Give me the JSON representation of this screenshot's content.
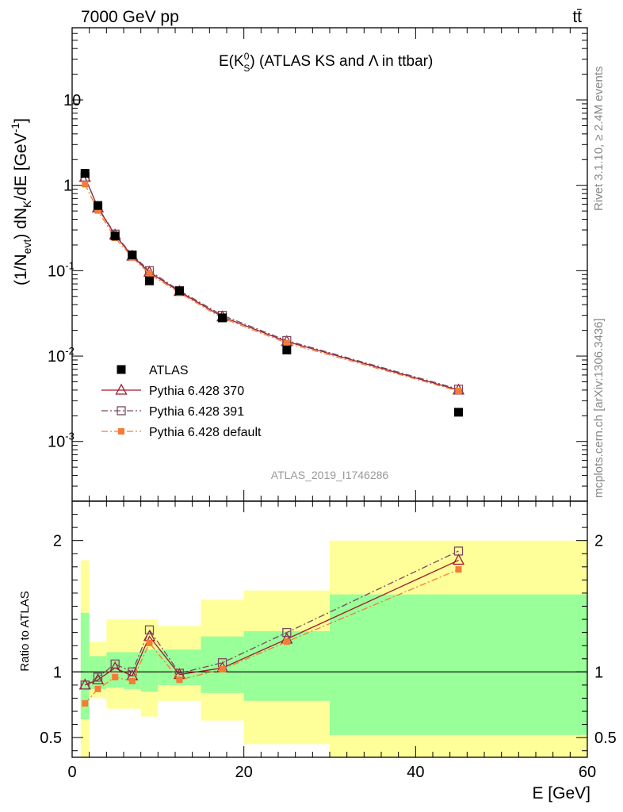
{
  "header": {
    "left": "7000 GeV pp",
    "right": "tt̄"
  },
  "side_text": {
    "rivet": "Rivet 3.1.10, ≥ 2.4M events",
    "mcplots": "mcplots.cern.ch [arXiv:1306.3436]"
  },
  "chart_data": [
    {
      "type": "scatter",
      "panel": "main",
      "title_main": "E(K",
      "title_sup": "0",
      "title_sub": "S",
      "title_rest": ") (ATLAS KS and Λ in ttbar)",
      "ylabel_main": "(1/N",
      "ylabel_sub1": "evt",
      "ylabel_mid": ") dN",
      "ylabel_sub2": "K",
      "ylabel_rest": "/dE [GeV",
      "ylabel_sup": "-1",
      "ylabel_end": "]",
      "yscale": "log",
      "ylim": [
        0.0002,
        70
      ],
      "xlim": [
        0,
        60
      ],
      "y_ticklabels": [
        {
          "base": "10",
          "exp": "-3",
          "value": 0.001
        },
        {
          "base": "10",
          "exp": "-2",
          "value": 0.01
        },
        {
          "base": "10",
          "exp": "-1",
          "value": 0.1
        },
        {
          "base": "1",
          "exp": "",
          "value": 1
        },
        {
          "base": "10",
          "exp": "",
          "value": 10
        }
      ],
      "watermark": "ATLAS_2019_I1746286",
      "legend_position": "bottom-left",
      "x": [
        1.5,
        3,
        5,
        7,
        9,
        12.5,
        17.5,
        25,
        45
      ],
      "series": [
        {
          "name": "ATLAS",
          "color": "#000000",
          "marker": "filled-square",
          "line": "none",
          "values": [
            1.38,
            0.58,
            0.255,
            0.153,
            0.076,
            0.058,
            0.028,
            0.0118,
            0.0022
          ]
        },
        {
          "name": "Pythia 6.428 370",
          "color": "#a0182b",
          "marker": "open-triangle",
          "line": "solid",
          "values": [
            1.24,
            0.545,
            0.262,
            0.148,
            0.096,
            0.057,
            0.0288,
            0.0148,
            0.004
          ]
        },
        {
          "name": "Pythia 6.428 391",
          "color": "#7a4a60",
          "marker": "open-square",
          "line": "dash-dot",
          "values": [
            1.25,
            0.555,
            0.268,
            0.152,
            0.1,
            0.0585,
            0.03,
            0.0152,
            0.0041
          ]
        },
        {
          "name": "Pythia 6.428 default",
          "color": "#f57c36",
          "marker": "filled-small-square",
          "line": "dash-dot",
          "values": [
            1.03,
            0.505,
            0.242,
            0.143,
            0.092,
            0.055,
            0.0278,
            0.0142,
            0.0039
          ]
        }
      ]
    },
    {
      "type": "line",
      "panel": "ratio",
      "ylabel": "Ratio to ATLAS",
      "xlabel": "E [GeV]",
      "ylim": [
        0.35,
        2.3
      ],
      "xlim": [
        0,
        60
      ],
      "x_ticklabels": [
        "0",
        "20",
        "40",
        "60"
      ],
      "y_ticklabels": [
        "0.5",
        "1",
        "2"
      ],
      "bands": [
        {
          "x_lo": 1,
          "x_hi": 2,
          "green": [
            0.64,
            1.45
          ],
          "yellow": [
            0.01,
            1.85
          ]
        },
        {
          "x_lo": 2,
          "x_hi": 4,
          "green": [
            0.87,
            1.12
          ],
          "yellow": [
            0.8,
            1.23
          ]
        },
        {
          "x_lo": 4,
          "x_hi": 6,
          "green": [
            0.88,
            1.15
          ],
          "yellow": [
            0.72,
            1.4
          ]
        },
        {
          "x_lo": 6,
          "x_hi": 8,
          "green": [
            0.87,
            1.15
          ],
          "yellow": [
            0.72,
            1.4
          ]
        },
        {
          "x_lo": 8,
          "x_hi": 10,
          "green": [
            0.85,
            1.17
          ],
          "yellow": [
            0.66,
            1.4
          ]
        },
        {
          "x_lo": 10,
          "x_hi": 15,
          "green": [
            0.9,
            1.17
          ],
          "yellow": [
            0.78,
            1.35
          ]
        },
        {
          "x_lo": 15,
          "x_hi": 20,
          "green": [
            0.84,
            1.27
          ],
          "yellow": [
            0.63,
            1.55
          ]
        },
        {
          "x_lo": 20,
          "x_hi": 30,
          "green": [
            0.78,
            1.31
          ],
          "yellow": [
            0.45,
            1.62
          ]
        },
        {
          "x_lo": 30,
          "x_hi": 60,
          "green": [
            0.52,
            1.59
          ],
          "yellow": [
            0.01,
            2.0
          ]
        }
      ],
      "x": [
        1.5,
        3,
        5,
        7,
        9,
        12.5,
        17.5,
        25,
        45
      ],
      "series": [
        {
          "name": "Pythia 6.428 370",
          "color": "#a0182b",
          "marker": "open-triangle",
          "line": "solid",
          "values": [
            0.9,
            0.94,
            1.03,
            0.97,
            1.27,
            0.98,
            1.03,
            1.25,
            1.85
          ]
        },
        {
          "name": "Pythia 6.428 391",
          "color": "#7a4a60",
          "marker": "open-square",
          "line": "dash-dot",
          "values": [
            0.9,
            0.96,
            1.06,
            1.0,
            1.32,
            0.99,
            1.07,
            1.3,
            1.92
          ]
        },
        {
          "name": "Pythia 6.428 default",
          "color": "#f57c36",
          "marker": "filled-small-square",
          "line": "dash-dot",
          "values": [
            0.76,
            0.87,
            0.96,
            0.93,
            1.22,
            0.94,
            1.02,
            1.23,
            1.78
          ]
        }
      ]
    }
  ]
}
